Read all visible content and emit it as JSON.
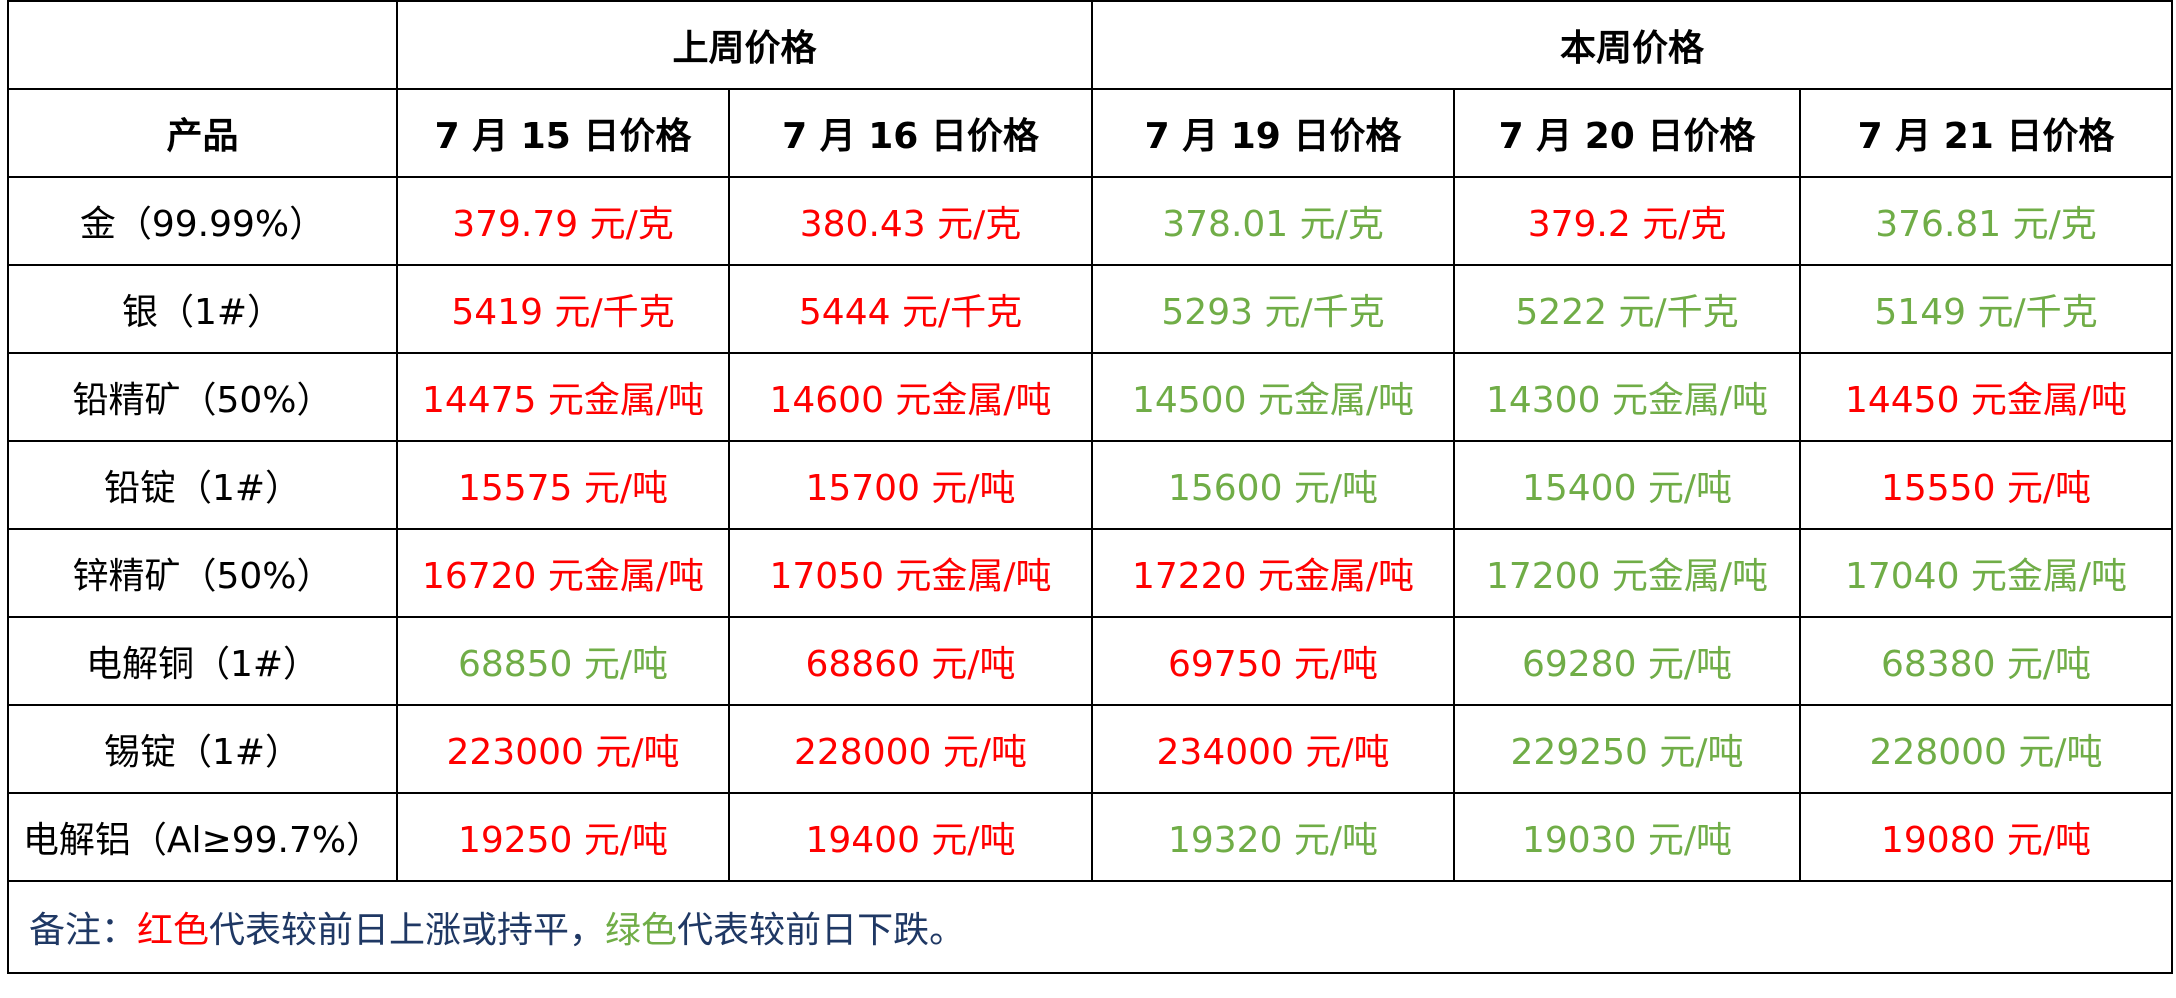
{
  "header": {
    "last_week": "上周价格",
    "this_week": "本周价格",
    "product": "产品",
    "dates": [
      "7 月 15 日价格",
      "7 月 16 日价格",
      "7 月 19 日价格",
      "7 月 20 日价格",
      "7 月 21 日价格"
    ]
  },
  "rows": [
    {
      "product": "金（99.99%）",
      "values": [
        {
          "text": "379.79 元/克",
          "trend": "up"
        },
        {
          "text": "380.43 元/克",
          "trend": "up"
        },
        {
          "text": "378.01 元/克",
          "trend": "down"
        },
        {
          "text": "379.2 元/克",
          "trend": "up"
        },
        {
          "text": "376.81 元/克",
          "trend": "down"
        }
      ]
    },
    {
      "product": "银（1#）",
      "values": [
        {
          "text": "5419 元/千克",
          "trend": "up"
        },
        {
          "text": "5444 元/千克",
          "trend": "up"
        },
        {
          "text": "5293 元/千克",
          "trend": "down"
        },
        {
          "text": "5222 元/千克",
          "trend": "down"
        },
        {
          "text": "5149 元/千克",
          "trend": "down"
        }
      ]
    },
    {
      "product": "铅精矿（50%）",
      "values": [
        {
          "text": "14475 元金属/吨",
          "trend": "up"
        },
        {
          "text": "14600 元金属/吨",
          "trend": "up"
        },
        {
          "text": "14500 元金属/吨",
          "trend": "down"
        },
        {
          "text": "14300 元金属/吨",
          "trend": "down"
        },
        {
          "text": "14450 元金属/吨",
          "trend": "up"
        }
      ]
    },
    {
      "product": "铅锭（1#）",
      "values": [
        {
          "text": "15575 元/吨",
          "trend": "up"
        },
        {
          "text": "15700 元/吨",
          "trend": "up"
        },
        {
          "text": "15600 元/吨",
          "trend": "down"
        },
        {
          "text": "15400 元/吨",
          "trend": "down"
        },
        {
          "text": "15550 元/吨",
          "trend": "up"
        }
      ]
    },
    {
      "product": "锌精矿（50%）",
      "values": [
        {
          "text": "16720 元金属/吨",
          "trend": "up"
        },
        {
          "text": "17050 元金属/吨",
          "trend": "up"
        },
        {
          "text": "17220 元金属/吨",
          "trend": "up"
        },
        {
          "text": "17200 元金属/吨",
          "trend": "down"
        },
        {
          "text": "17040 元金属/吨",
          "trend": "down"
        }
      ]
    },
    {
      "product": "电解铜（1#）",
      "values": [
        {
          "text": "68850 元/吨",
          "trend": "down"
        },
        {
          "text": "68860 元/吨",
          "trend": "up"
        },
        {
          "text": "69750 元/吨",
          "trend": "up"
        },
        {
          "text": "69280 元/吨",
          "trend": "down"
        },
        {
          "text": "68380 元/吨",
          "trend": "down"
        }
      ]
    },
    {
      "product": "锡锭（1#）",
      "values": [
        {
          "text": "223000 元/吨",
          "trend": "up"
        },
        {
          "text": "228000 元/吨",
          "trend": "up"
        },
        {
          "text": "234000 元/吨",
          "trend": "up"
        },
        {
          "text": "229250 元/吨",
          "trend": "down"
        },
        {
          "text": "228000 元/吨",
          "trend": "down"
        }
      ]
    },
    {
      "product": "电解铝（Al≥99.7%）",
      "values": [
        {
          "text": "19250 元/吨",
          "trend": "up"
        },
        {
          "text": "19400 元/吨",
          "trend": "up"
        },
        {
          "text": "19320 元/吨",
          "trend": "down"
        },
        {
          "text": "19030 元/吨",
          "trend": "down"
        },
        {
          "text": "19080 元/吨",
          "trend": "up"
        }
      ]
    }
  ],
  "note": {
    "prefix": "备注：",
    "red_word": "红色",
    "red_meaning": "代表较前日上涨或持平，",
    "green_word": "绿色",
    "green_meaning": "代表较前日下跌。"
  },
  "colors": {
    "up": "#ff0000",
    "down": "#70ad47",
    "note_text": "#1f3864"
  }
}
